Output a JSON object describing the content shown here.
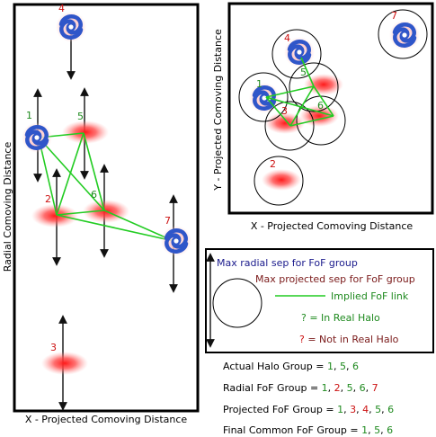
{
  "left_panel": {
    "x_axis_label": "X - Projected Comoving Distance",
    "y_axis_label": "Radial Comoving Distance",
    "objects": [
      {
        "id": "4",
        "kind": "galaxy",
        "status": "not_in_halo"
      },
      {
        "id": "1",
        "kind": "galaxy",
        "status": "in_halo"
      },
      {
        "id": "5",
        "kind": "blob",
        "status": "in_halo"
      },
      {
        "id": "2",
        "kind": "blob",
        "status": "not_in_halo"
      },
      {
        "id": "6",
        "kind": "blob",
        "status": "in_halo"
      },
      {
        "id": "7",
        "kind": "galaxy",
        "status": "not_in_halo"
      },
      {
        "id": "3",
        "kind": "blob",
        "status": "not_in_halo"
      }
    ]
  },
  "right_panel": {
    "x_axis_label": "X - Projected Comoving Distance",
    "y_axis_label": "Y - Projected Comoving Distance",
    "objects": [
      {
        "id": "7",
        "kind": "galaxy",
        "status": "not_in_halo"
      },
      {
        "id": "4",
        "kind": "galaxy",
        "status": "not_in_halo"
      },
      {
        "id": "5",
        "kind": "blob",
        "status": "in_halo"
      },
      {
        "id": "1",
        "kind": "galaxy",
        "status": "in_halo"
      },
      {
        "id": "3",
        "kind": "blob",
        "status": "not_in_halo"
      },
      {
        "id": "6",
        "kind": "blob",
        "status": "in_halo"
      },
      {
        "id": "2",
        "kind": "blob",
        "status": "not_in_halo"
      }
    ]
  },
  "legend": {
    "radial": "Max radial sep for FoF group",
    "projected": "Max projected sep for FoF group",
    "link": "Implied FoF link",
    "in_halo_mark": "?",
    "in_halo_text": " = In Real Halo",
    "not_in_halo_mark": "?",
    "not_in_halo_text": " = Not in Real Halo"
  },
  "groups": [
    {
      "label": "Actual Halo Group = ",
      "items": [
        {
          "t": "1",
          "s": "in"
        },
        {
          "t": ", ",
          "s": "sep"
        },
        {
          "t": "5",
          "s": "in"
        },
        {
          "t": ", ",
          "s": "sep"
        },
        {
          "t": "6",
          "s": "in"
        }
      ]
    },
    {
      "label": "Radial FoF Group = ",
      "items": [
        {
          "t": "1",
          "s": "in"
        },
        {
          "t": ", ",
          "s": "sep"
        },
        {
          "t": "2",
          "s": "out"
        },
        {
          "t": ", ",
          "s": "sep"
        },
        {
          "t": "5",
          "s": "in"
        },
        {
          "t": ", ",
          "s": "sep"
        },
        {
          "t": "6",
          "s": "in"
        },
        {
          "t": ", ",
          "s": "sep"
        },
        {
          "t": "7",
          "s": "out"
        }
      ]
    },
    {
      "label": "Projected FoF Group = ",
      "items": [
        {
          "t": "1",
          "s": "in"
        },
        {
          "t": ", ",
          "s": "sep"
        },
        {
          "t": "3",
          "s": "out"
        },
        {
          "t": ", ",
          "s": "sep"
        },
        {
          "t": "4",
          "s": "out"
        },
        {
          "t": ", ",
          "s": "sep"
        },
        {
          "t": "5",
          "s": "in"
        },
        {
          "t": ", ",
          "s": "sep"
        },
        {
          "t": "6",
          "s": "in"
        }
      ]
    },
    {
      "label": "Final Common FoF Group = ",
      "items": [
        {
          "t": "1",
          "s": "in"
        },
        {
          "t": ", ",
          "s": "sep"
        },
        {
          "t": "5",
          "s": "in"
        },
        {
          "t": ", ",
          "s": "sep"
        },
        {
          "t": "6",
          "s": "in"
        }
      ]
    }
  ],
  "colors": {
    "in_halo": "#1f8a1f",
    "not_in_halo": "#cc1111",
    "link": "#22cc22",
    "legend_blue": "#1a1a8c",
    "legend_dark_red": "#7a1a1a",
    "legend_green": "#1f8a1f",
    "galaxy": "#2f56c9",
    "blob": "#ff3030",
    "arrow": "#111111",
    "frame": "#000000"
  }
}
